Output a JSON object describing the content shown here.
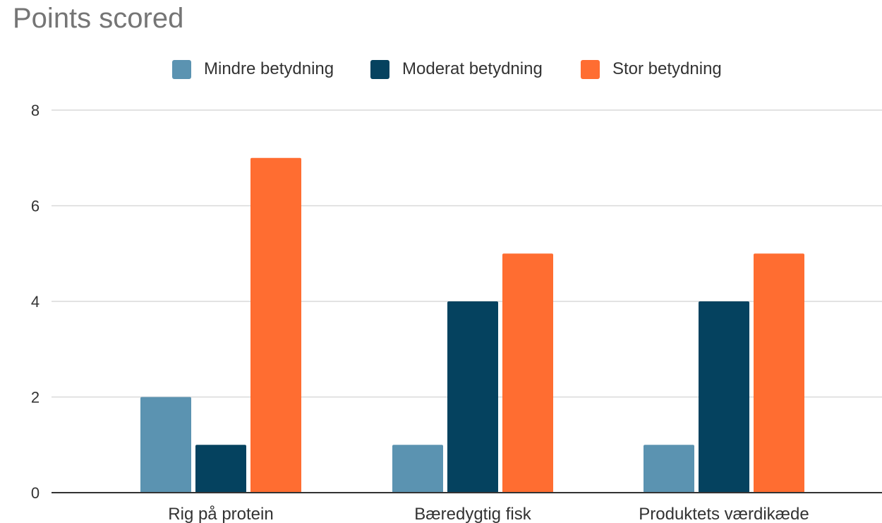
{
  "chart_data": {
    "type": "bar",
    "title": "Points scored",
    "categories": [
      "Rig på protein",
      "Bæredygtig fisk",
      "Produktets værdikæde"
    ],
    "series": [
      {
        "name": "Mindre betydning",
        "color": "#5b93b1",
        "values": [
          2,
          1,
          1
        ]
      },
      {
        "name": "Moderat betydning",
        "color": "#05425f",
        "values": [
          1,
          4,
          4
        ]
      },
      {
        "name": "Stor betydning",
        "color": "#ff6d31",
        "values": [
          7,
          5,
          5
        ]
      }
    ],
    "yticks": [
      0,
      2,
      4,
      6,
      8
    ],
    "ylim": [
      0,
      8
    ],
    "grid": true,
    "legend_position": "top"
  }
}
